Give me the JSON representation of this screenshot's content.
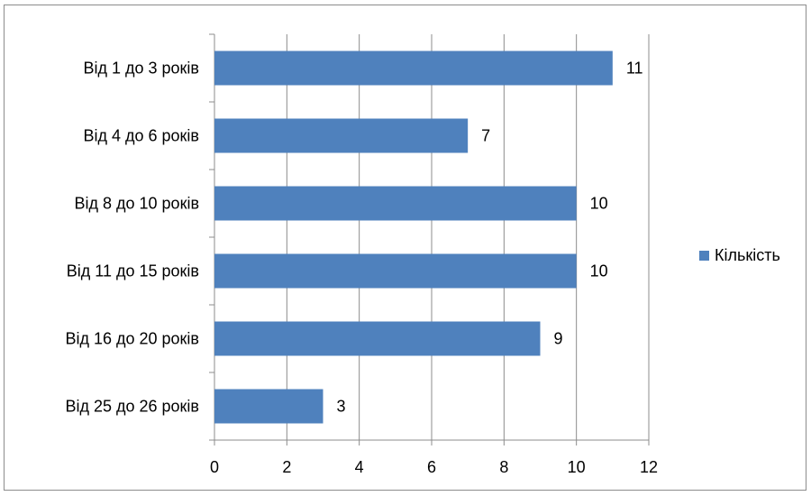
{
  "chart_data": {
    "type": "bar",
    "orientation": "horizontal",
    "categories": [
      "Від 1 до 3 років",
      "Від 4 до 6 років",
      "Від 8 до 10 років",
      "Від 11 до 15 років",
      "Від 16 до 20 років",
      "Від 25 до 26 років"
    ],
    "series": [
      {
        "name": "Кількість",
        "values": [
          11,
          7,
          10,
          10,
          9,
          3
        ],
        "color": "#4F81BD"
      }
    ],
    "data_labels": [
      "11",
      "7",
      "10",
      "10",
      "9",
      "3"
    ],
    "xlim": [
      0,
      12
    ],
    "x_ticks": [
      0,
      2,
      4,
      6,
      8,
      10,
      12
    ],
    "x_tick_labels": [
      "0",
      "2",
      "4",
      "6",
      "8",
      "10",
      "12"
    ],
    "grid": "vertical",
    "legend": {
      "position": "right",
      "label": "Кількість"
    },
    "title": "",
    "xlabel": "",
    "ylabel": ""
  }
}
